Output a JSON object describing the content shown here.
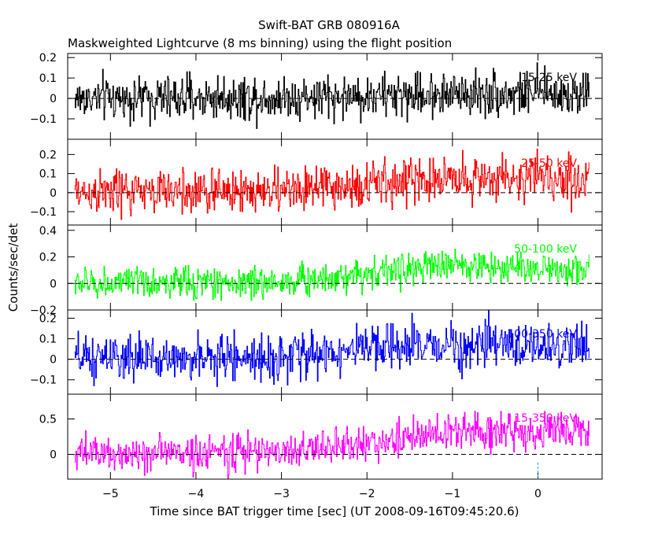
{
  "chart_data": {
    "type": "line",
    "title": "Swift-BAT GRB 080916A",
    "subtitle": "Maskweighted Lightcurve (8 ms binning) using the flight position",
    "xlabel": "Time since BAT trigger time [sec] (UT 2008-09-16T09:45:20.6)",
    "ylabel": "Counts/sec/det",
    "xlim": [
      -5.5,
      0.75
    ],
    "x_ticks": [
      "-5",
      "-4",
      "-3",
      "-2",
      "-1",
      "0"
    ],
    "x_tick_values": [
      -5,
      -4,
      -3,
      -2,
      -1,
      0
    ],
    "data_range": [
      -5.42,
      0.6
    ],
    "bin_width": 0.008,
    "zero_line": "dashed",
    "trigger_marker_x": 0,
    "panels": [
      {
        "name": "15-25 keV",
        "color": "#000000",
        "ylim": [
          -0.2,
          0.22
        ],
        "y_ticks": [
          "0.2",
          "0.1",
          "0",
          "−0.1"
        ],
        "y_tick_values": [
          0.2,
          0.1,
          0,
          -0.1
        ],
        "profile": [
          [
            -5.42,
            0.0
          ],
          [
            -3.0,
            0.005
          ],
          [
            -2.0,
            0.01
          ],
          [
            -1.0,
            0.025
          ],
          [
            0.6,
            0.025
          ]
        ],
        "noise": 0.055
      },
      {
        "name": "25-50 keV",
        "color": "#ff0000",
        "ylim": [
          -0.17,
          0.28
        ],
        "y_ticks": [
          "0.2",
          "0.1",
          "0",
          "−0.1"
        ],
        "y_tick_values": [
          0.2,
          0.1,
          0,
          -0.1
        ],
        "profile": [
          [
            -5.42,
            0.0
          ],
          [
            -3.0,
            0.01
          ],
          [
            -2.0,
            0.04
          ],
          [
            -1.0,
            0.08
          ],
          [
            0.6,
            0.07
          ]
        ],
        "noise": 0.06
      },
      {
        "name": "50-100 keV",
        "color": "#00ff00",
        "ylim": [
          -0.2,
          0.44
        ],
        "y_ticks": [
          "0.4",
          "0.2",
          "0",
          "−0.2"
        ],
        "y_tick_values": [
          0.4,
          0.2,
          0,
          -0.2
        ],
        "profile": [
          [
            -5.42,
            0.0
          ],
          [
            -3.0,
            0.01
          ],
          [
            -2.0,
            0.08
          ],
          [
            -1.0,
            0.14
          ],
          [
            0.6,
            0.1
          ]
        ],
        "noise": 0.06
      },
      {
        "name": "100-350 keV",
        "color": "#0000ff",
        "ylim": [
          -0.17,
          0.24
        ],
        "y_ticks": [
          "0.2",
          "0.1",
          "0",
          "−0.1"
        ],
        "y_tick_values": [
          0.2,
          0.1,
          0,
          -0.1
        ],
        "profile": [
          [
            -5.42,
            0.0
          ],
          [
            -3.0,
            0.01
          ],
          [
            -2.0,
            0.05
          ],
          [
            -1.0,
            0.07
          ],
          [
            0.6,
            0.06
          ]
        ],
        "noise": 0.055
      },
      {
        "name": "15-350 keV",
        "color": "#ff00ff",
        "ylim": [
          -0.35,
          0.85
        ],
        "y_ticks": [
          "0.5",
          "0"
        ],
        "y_tick_values": [
          0.5,
          0
        ],
        "profile": [
          [
            -5.42,
            0.0
          ],
          [
            -3.0,
            0.04
          ],
          [
            -2.0,
            0.15
          ],
          [
            -1.0,
            0.32
          ],
          [
            0.6,
            0.33
          ]
        ],
        "noise": 0.13
      }
    ]
  }
}
